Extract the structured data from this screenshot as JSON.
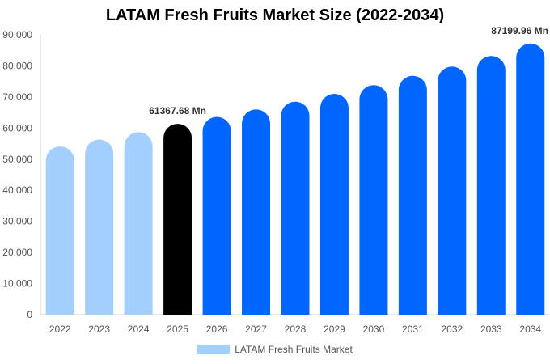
{
  "chart_data": {
    "type": "bar",
    "title": "LATAM Fresh Fruits Market Size (2022-2034)",
    "categories": [
      "2022",
      "2023",
      "2024",
      "2025",
      "2026",
      "2027",
      "2028",
      "2029",
      "2030",
      "2031",
      "2032",
      "2033",
      "2034"
    ],
    "series": [
      {
        "name": "LATAM Fresh Fruits Market",
        "values": [
          54100,
          56300,
          58700,
          61367.68,
          63600,
          66000,
          68500,
          71000,
          73800,
          76800,
          79800,
          83200,
          87199.96
        ]
      }
    ],
    "data_labels": [
      {
        "category": "2025",
        "text": "61367.68 Mn"
      },
      {
        "category": "2034",
        "text": "87199.96 Mn"
      }
    ],
    "ylim": [
      0,
      90000
    ],
    "yticks": [
      0,
      10000,
      20000,
      30000,
      40000,
      50000,
      60000,
      70000,
      80000,
      90000
    ],
    "ytick_labels": [
      "0",
      "10,000",
      "20,000",
      "30,000",
      "40,000",
      "50,000",
      "60,000",
      "70,000",
      "80,000",
      "90,000"
    ],
    "grid": false,
    "legend_position": "bottom-center",
    "colors": {
      "historical": "#a3cfff",
      "base_year": "#000000",
      "forecast": "#0066ff",
      "legend_swatch": "#a3cfff"
    },
    "bar_color_groups": [
      "historical",
      "historical",
      "historical",
      "base_year",
      "forecast",
      "forecast",
      "forecast",
      "forecast",
      "forecast",
      "forecast",
      "forecast",
      "forecast",
      "forecast"
    ]
  }
}
